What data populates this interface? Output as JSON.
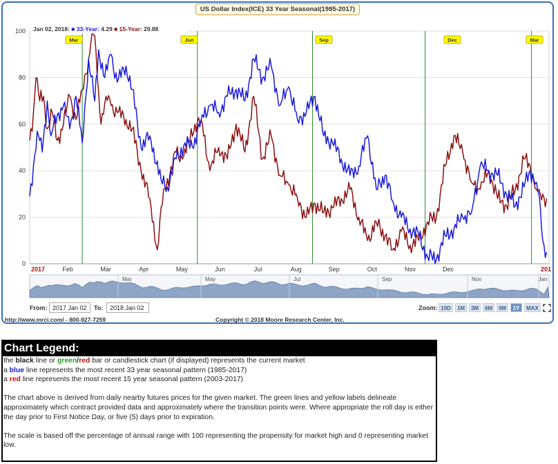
{
  "chart_data": {
    "type": "line",
    "title": "US Dollar Index(ICE) 33 Year Seasonal(1985-2017)",
    "ylim": [
      0,
      100
    ],
    "yticks": [
      0,
      20,
      40,
      60,
      80,
      100
    ],
    "x_month_labels": [
      "2017",
      "Feb",
      "Mar",
      "Apr",
      "May",
      "Jun",
      "Jul",
      "Aug",
      "Sep",
      "Oct",
      "Nov",
      "Dec",
      "201"
    ],
    "transition_labels": [
      "Mar",
      "Jun",
      "Sep",
      "Dec",
      "Mar"
    ],
    "transition_days": [
      42,
      134,
      226,
      316,
      401
    ],
    "day_count": 415,
    "readout": {
      "date": "Jan 02, 2018:",
      "blue_label": "33-Year:",
      "blue_value": "4.29",
      "red_label": "15-Year:",
      "red_value": "29.88"
    },
    "series": [
      {
        "name": "33-Year",
        "color": "#1a1adc",
        "x": [
          0,
          3,
          6,
          10,
          14,
          17,
          22,
          27,
          32,
          37,
          42,
          47,
          52,
          55,
          60,
          65,
          70,
          77,
          82,
          89,
          96,
          105,
          110,
          117,
          124,
          130,
          137,
          144,
          151,
          158,
          165,
          172,
          179,
          186,
          193,
          200,
          207,
          214,
          221,
          228,
          235,
          242,
          249,
          256,
          263,
          270,
          277,
          284,
          290,
          297,
          304,
          311,
          318,
          325,
          332,
          339,
          346,
          353,
          360,
          367,
          374,
          381,
          388,
          395,
          400,
          405,
          408,
          410,
          413
        ],
        "y": [
          29,
          42,
          57,
          48,
          70,
          55,
          64,
          68,
          58,
          72,
          52,
          88,
          70,
          92,
          80,
          90,
          78,
          85,
          75,
          50,
          55,
          36,
          33,
          45,
          52,
          50,
          62,
          68,
          65,
          72,
          75,
          70,
          88,
          80,
          85,
          68,
          76,
          62,
          65,
          72,
          55,
          52,
          45,
          38,
          42,
          55,
          32,
          38,
          27,
          20,
          15,
          12,
          3,
          2,
          12,
          15,
          20,
          22,
          42,
          40,
          38,
          30,
          25,
          33,
          40,
          35,
          25,
          10,
          5
        ]
      },
      {
        "name": "15-Year",
        "color": "#8b1010",
        "x": [
          0,
          3,
          5,
          8,
          11,
          14,
          18,
          22,
          27,
          32,
          37,
          42,
          47,
          50,
          52,
          54,
          57,
          61,
          65,
          70,
          77,
          82,
          89,
          96,
          102,
          107,
          112,
          117,
          122,
          127,
          132,
          137,
          144,
          151,
          158,
          165,
          172,
          179,
          186,
          193,
          200,
          207,
          214,
          221,
          228,
          235,
          242,
          249,
          256,
          263,
          270,
          277,
          284,
          290,
          297,
          304,
          311,
          318,
          325,
          332,
          339,
          346,
          353,
          360,
          367,
          374,
          381,
          388,
          395,
          400,
          405,
          408,
          413
        ],
        "y": [
          53,
          65,
          80,
          70,
          72,
          58,
          65,
          53,
          60,
          72,
          62,
          75,
          88,
          100,
          98,
          80,
          60,
          72,
          68,
          65,
          62,
          58,
          40,
          28,
          6,
          32,
          38,
          48,
          45,
          52,
          60,
          62,
          40,
          50,
          45,
          60,
          48,
          72,
          45,
          55,
          38,
          34,
          28,
          20,
          26,
          22,
          24,
          28,
          32,
          20,
          10,
          18,
          12,
          6,
          14,
          8,
          10,
          18,
          20,
          42,
          55,
          48,
          35,
          32,
          40,
          28,
          25,
          32,
          45,
          42,
          32,
          30,
          28
        ]
      }
    ]
  },
  "navigator": {
    "labels": [
      "Mar",
      "May",
      "Jul",
      "Sep",
      "Nov",
      "Jan"
    ]
  },
  "controls": {
    "from_label": "From:",
    "from_value": "2017 Jan 02",
    "to_label": "To:",
    "to_value": "2018 Jan 02",
    "zoom_label": "Zoom:",
    "zoom_buttons": [
      "10D",
      "1M",
      "3M",
      "6M",
      "9M",
      "1Y",
      "MAX"
    ],
    "zoom_active": "1Y"
  },
  "footer": {
    "website": "http://www.mrci.com/",
    "phone": " - 800-927-7259",
    "copyright": "Copyright © 2018 Moore Research Center, Inc."
  },
  "legend": {
    "header": "Chart Legend:",
    "line1_pre": "the ",
    "line1_black": "black",
    "line1_mid": " line or ",
    "line1_green": "green",
    "line1_slash": "/",
    "line1_red": "red",
    "line1_post": " bar or candlestick chart (if displayed) represents the current market",
    "line2_pre": "a ",
    "line2_blue": "blue",
    "line2_post": " line represents the most recent 33 year seasonal pattern (1985-2017)",
    "line3_pre": "a ",
    "line3_red": "red",
    "line3_post": " line represents the most recent 15 year seasonal pattern (2003-2017)",
    "para1": "The chart above is derived from daily nearby futures prices for the given market. The green lines and yellow labels delineate approximately which contract provided data and approximately where the transition points were. Where appropriate the roll day is either the day prior to First Notice Day, or five (5) days prior to expiration.",
    "para2": "The scale is based off the percentage of annual range with 100 representing the propensity for market high and 0 representing market low."
  },
  "colors": {
    "frame": "#3b6fb3",
    "blue_series": "#1a1adc",
    "red_series": "#8b1010",
    "transition": "#2a8a2a",
    "label_fill": "#ffff00"
  }
}
